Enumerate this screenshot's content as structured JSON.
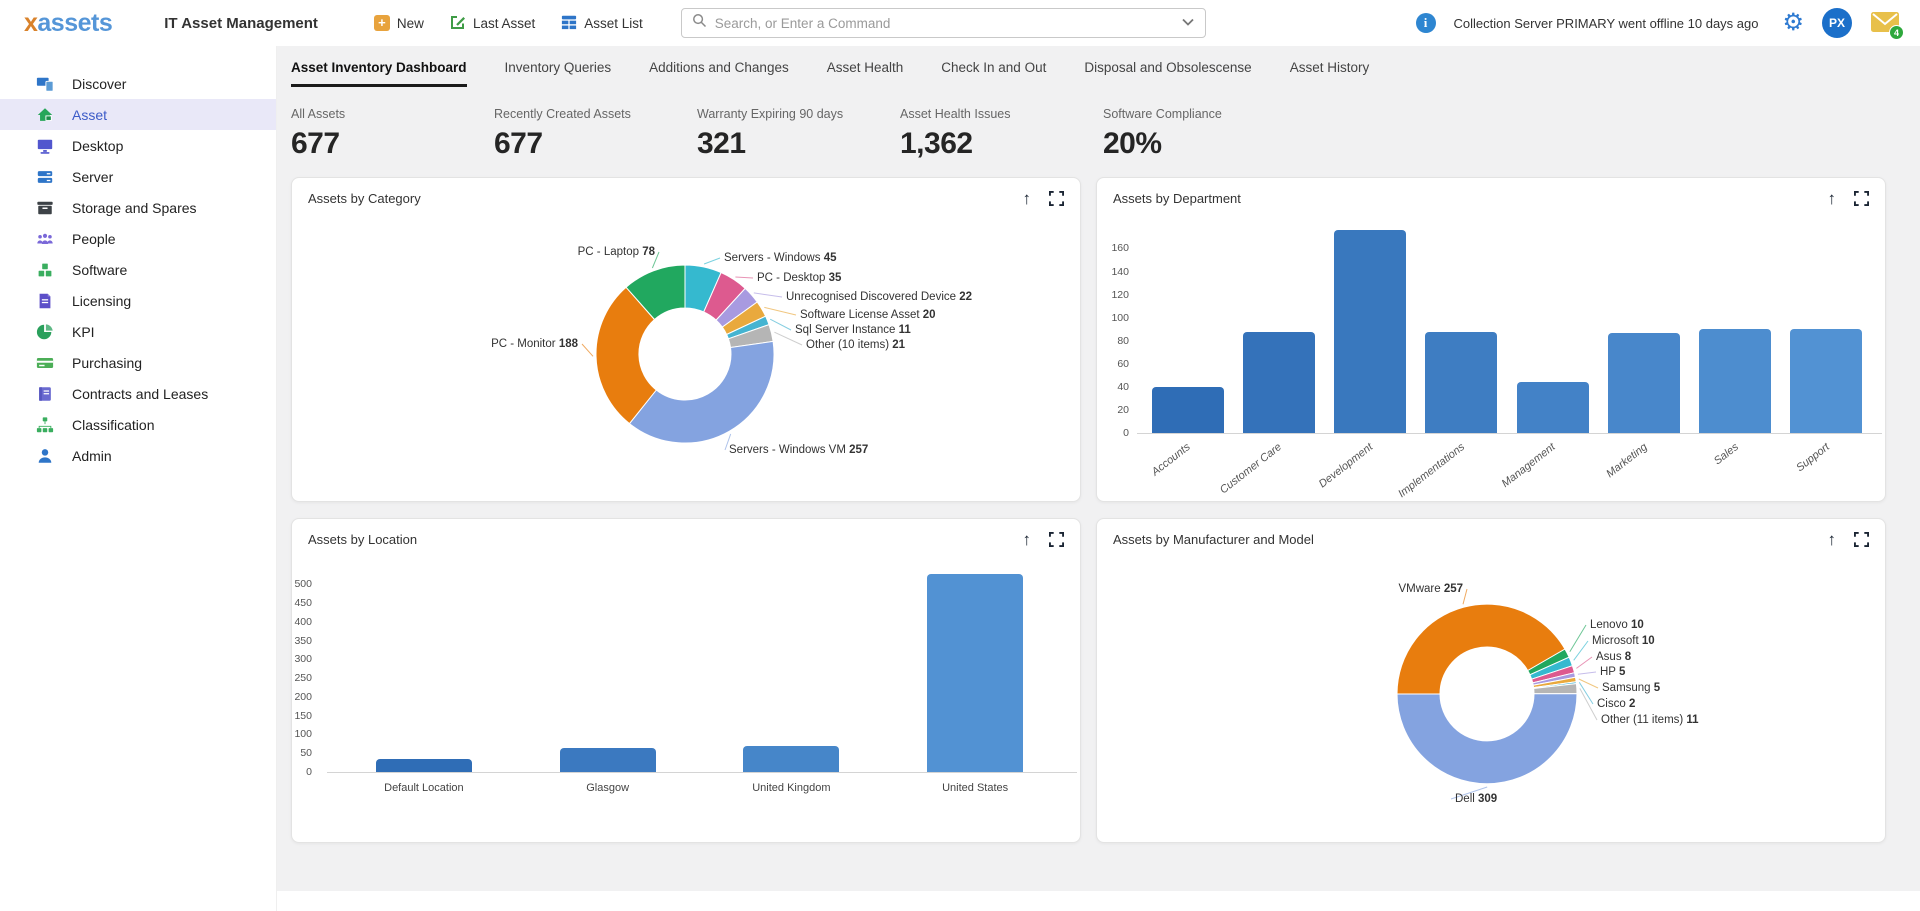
{
  "header": {
    "logo_x": "x",
    "logo_rest": "assets",
    "app_title": "IT Asset Management",
    "actions": [
      {
        "label": "New",
        "icon": "plus-icon"
      },
      {
        "label": "Last Asset",
        "icon": "edit-icon"
      },
      {
        "label": "Asset List",
        "icon": "table-icon"
      }
    ],
    "search_placeholder": "Search, or Enter a Command",
    "notification_text": "Collection Server PRIMARY went offline 10 days ago",
    "avatar_initials": "PX",
    "mail_badge": "4"
  },
  "sidebar": {
    "items": [
      {
        "label": "Discover",
        "icon": "discover-icon",
        "active": false
      },
      {
        "label": "Asset",
        "icon": "asset-icon",
        "active": true
      },
      {
        "label": "Desktop",
        "icon": "desktop-icon",
        "active": false
      },
      {
        "label": "Server",
        "icon": "server-icon",
        "active": false
      },
      {
        "label": "Storage and Spares",
        "icon": "storage-icon",
        "active": false
      },
      {
        "label": "People",
        "icon": "people-icon",
        "active": false
      },
      {
        "label": "Software",
        "icon": "software-icon",
        "active": false
      },
      {
        "label": "Licensing",
        "icon": "licensing-icon",
        "active": false
      },
      {
        "label": "KPI",
        "icon": "kpi-icon",
        "active": false
      },
      {
        "label": "Purchasing",
        "icon": "purchasing-icon",
        "active": false
      },
      {
        "label": "Contracts and Leases",
        "icon": "contracts-icon",
        "active": false
      },
      {
        "label": "Classification",
        "icon": "classification-icon",
        "active": false
      },
      {
        "label": "Admin",
        "icon": "admin-icon",
        "active": false
      }
    ]
  },
  "tabs": {
    "items": [
      {
        "label": "Asset Inventory Dashboard",
        "active": true
      },
      {
        "label": "Inventory Queries",
        "active": false
      },
      {
        "label": "Additions and Changes",
        "active": false
      },
      {
        "label": "Asset Health",
        "active": false
      },
      {
        "label": "Check In and Out",
        "active": false
      },
      {
        "label": "Disposal and Obsolescense",
        "active": false
      },
      {
        "label": "Asset History",
        "active": false
      }
    ]
  },
  "stats": [
    {
      "label": "All Assets",
      "value": "677"
    },
    {
      "label": "Recently Created Assets",
      "value": "677"
    },
    {
      "label": "Warranty Expiring 90 days",
      "value": "321"
    },
    {
      "label": "Asset Health Issues",
      "value": "1,362"
    },
    {
      "label": "Software Compliance",
      "value": "20%"
    }
  ],
  "chart_data": [
    {
      "type": "donut",
      "title": "Assets by Category",
      "series": [
        {
          "name": "Servers - Windows",
          "value": 45,
          "color": "#35b9cf"
        },
        {
          "name": "PC - Desktop",
          "value": 35,
          "color": "#dd5a8f"
        },
        {
          "name": "Unrecognised Discovered Device",
          "value": 22,
          "color": "#a89ae0"
        },
        {
          "name": "Software License Asset",
          "value": 20,
          "color": "#e9a93d"
        },
        {
          "name": "Sql Server Instance",
          "value": 11,
          "color": "#45b4d1"
        },
        {
          "name": "Other (10 items)",
          "value": 21,
          "color": "#b5b5b5"
        },
        {
          "name": "Servers - Windows VM",
          "value": 257,
          "color": "#84a3e0"
        },
        {
          "name": "PC - Monitor",
          "value": 188,
          "color": "#e87d0e"
        },
        {
          "name": "PC - Laptop",
          "value": 78,
          "color": "#21a85f"
        }
      ]
    },
    {
      "type": "bar",
      "title": "Assets by Department",
      "categories": [
        "Accounts",
        "Customer Care",
        "Development",
        "Implementations",
        "Management",
        "Marketing",
        "Sales",
        "Support"
      ],
      "values": [
        40,
        88,
        176,
        88,
        44,
        87,
        90,
        90
      ],
      "ylim": [
        0,
        176
      ],
      "ytick_step": 20,
      "ytick_max": 160
    },
    {
      "type": "bar",
      "title": "Assets by Location",
      "categories": [
        "Default Location",
        "Glasgow",
        "United Kingdom",
        "United States"
      ],
      "values": [
        35,
        65,
        70,
        528
      ],
      "ylim": [
        0,
        535
      ],
      "ytick_step": 50,
      "ytick_max": 500
    },
    {
      "type": "donut",
      "title": "Assets by Manufacturer and Model",
      "series": [
        {
          "name": "Lenovo",
          "value": 10,
          "color": "#21a85f"
        },
        {
          "name": "Microsoft",
          "value": 10,
          "color": "#35b9cf"
        },
        {
          "name": "Asus",
          "value": 8,
          "color": "#dd5a8f"
        },
        {
          "name": "HP",
          "value": 5,
          "color": "#a89ae0"
        },
        {
          "name": "Samsung",
          "value": 5,
          "color": "#e9a93d"
        },
        {
          "name": "Cisco",
          "value": 2,
          "color": "#45b4d1"
        },
        {
          "name": "Other (11 items)",
          "value": 11,
          "color": "#b5b5b5"
        },
        {
          "name": "Dell",
          "value": 309,
          "color": "#84a3e0"
        },
        {
          "name": "VMware",
          "value": 257,
          "color": "#e87d0e"
        }
      ],
      "start_angle": 60
    }
  ]
}
